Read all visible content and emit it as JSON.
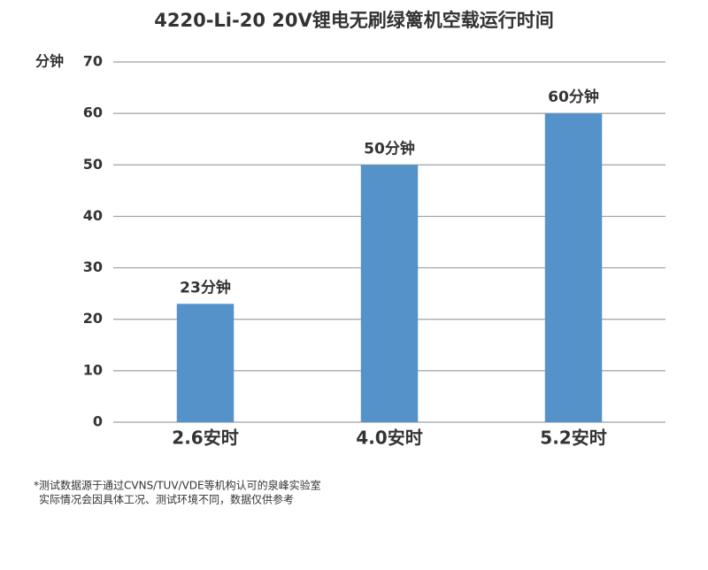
{
  "chart_data": {
    "type": "bar",
    "title": "4220-Li-20 20V锂电无刷绿篱机空载运行时间",
    "y_label": "分钟",
    "categories": [
      "2.6安时",
      "4.0安时",
      "5.2安时"
    ],
    "values": [
      23,
      50,
      60
    ],
    "value_labels": [
      "23分钟",
      "50分钟",
      "60分钟"
    ],
    "color": "#5592c9",
    "ylim": [
      0,
      70
    ],
    "yticks": [
      0,
      10,
      20,
      30,
      40,
      50,
      60,
      70
    ],
    "grid": true,
    "footnotes": [
      "*测试数据源于通过CVNS/TUV/VDE等机构认可的泉峰实验室",
      "实际情况会因具体工况、测试环境不同，数据仅供参考"
    ]
  }
}
